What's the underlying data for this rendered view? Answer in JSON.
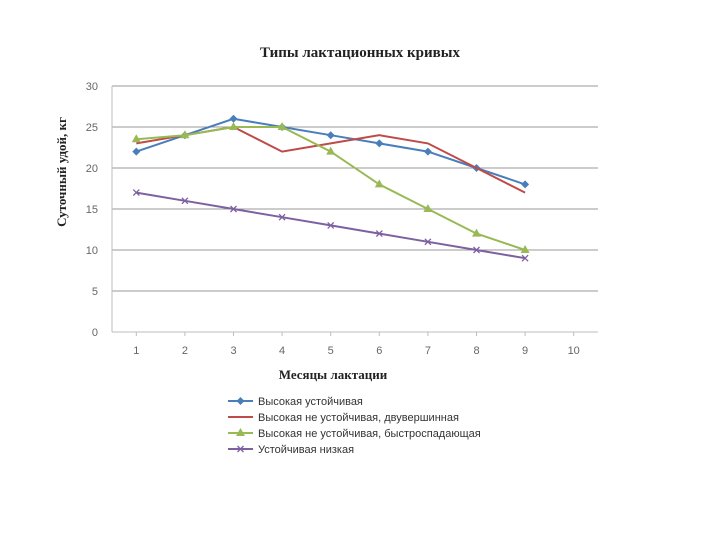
{
  "chart_data": {
    "type": "line",
    "title": "Типы лактационных  кривых",
    "xlabel": "Месяцы лактации",
    "ylabel": "Суточный удой, кг",
    "x": [
      1,
      2,
      3,
      4,
      5,
      6,
      7,
      8,
      9
    ],
    "xticks": [
      "1",
      "2",
      "3",
      "4",
      "5",
      "6",
      "7",
      "8",
      "9",
      "10"
    ],
    "xlim": [
      0.5,
      10.5
    ],
    "yticks": [
      "0",
      "5",
      "10",
      "15",
      "20",
      "25",
      "30"
    ],
    "ylim": [
      0,
      30
    ],
    "grid": "horizontal",
    "legend_position": "bottom",
    "series": [
      {
        "name": "Высокая устойчивая",
        "color": "#4a7ebb",
        "marker": "diamond",
        "values": [
          22,
          24,
          26,
          25,
          24,
          23,
          22,
          20,
          18
        ]
      },
      {
        "name": "Высокая не устойчивая, двувершинная",
        "color": "#be4b48",
        "marker": "none",
        "values": [
          23,
          24,
          25,
          22,
          23,
          24,
          23,
          20,
          17
        ]
      },
      {
        "name": "Высокая не устойчивая, быстроспадающая",
        "color": "#98b954",
        "marker": "triangle",
        "values": [
          23.5,
          24,
          25,
          25,
          22,
          18,
          15,
          12,
          10
        ]
      },
      {
        "name": "Устойчивая низкая",
        "color": "#7d60a0",
        "marker": "x",
        "values": [
          17,
          16,
          15,
          14,
          13,
          12,
          11,
          10,
          9
        ]
      }
    ]
  }
}
